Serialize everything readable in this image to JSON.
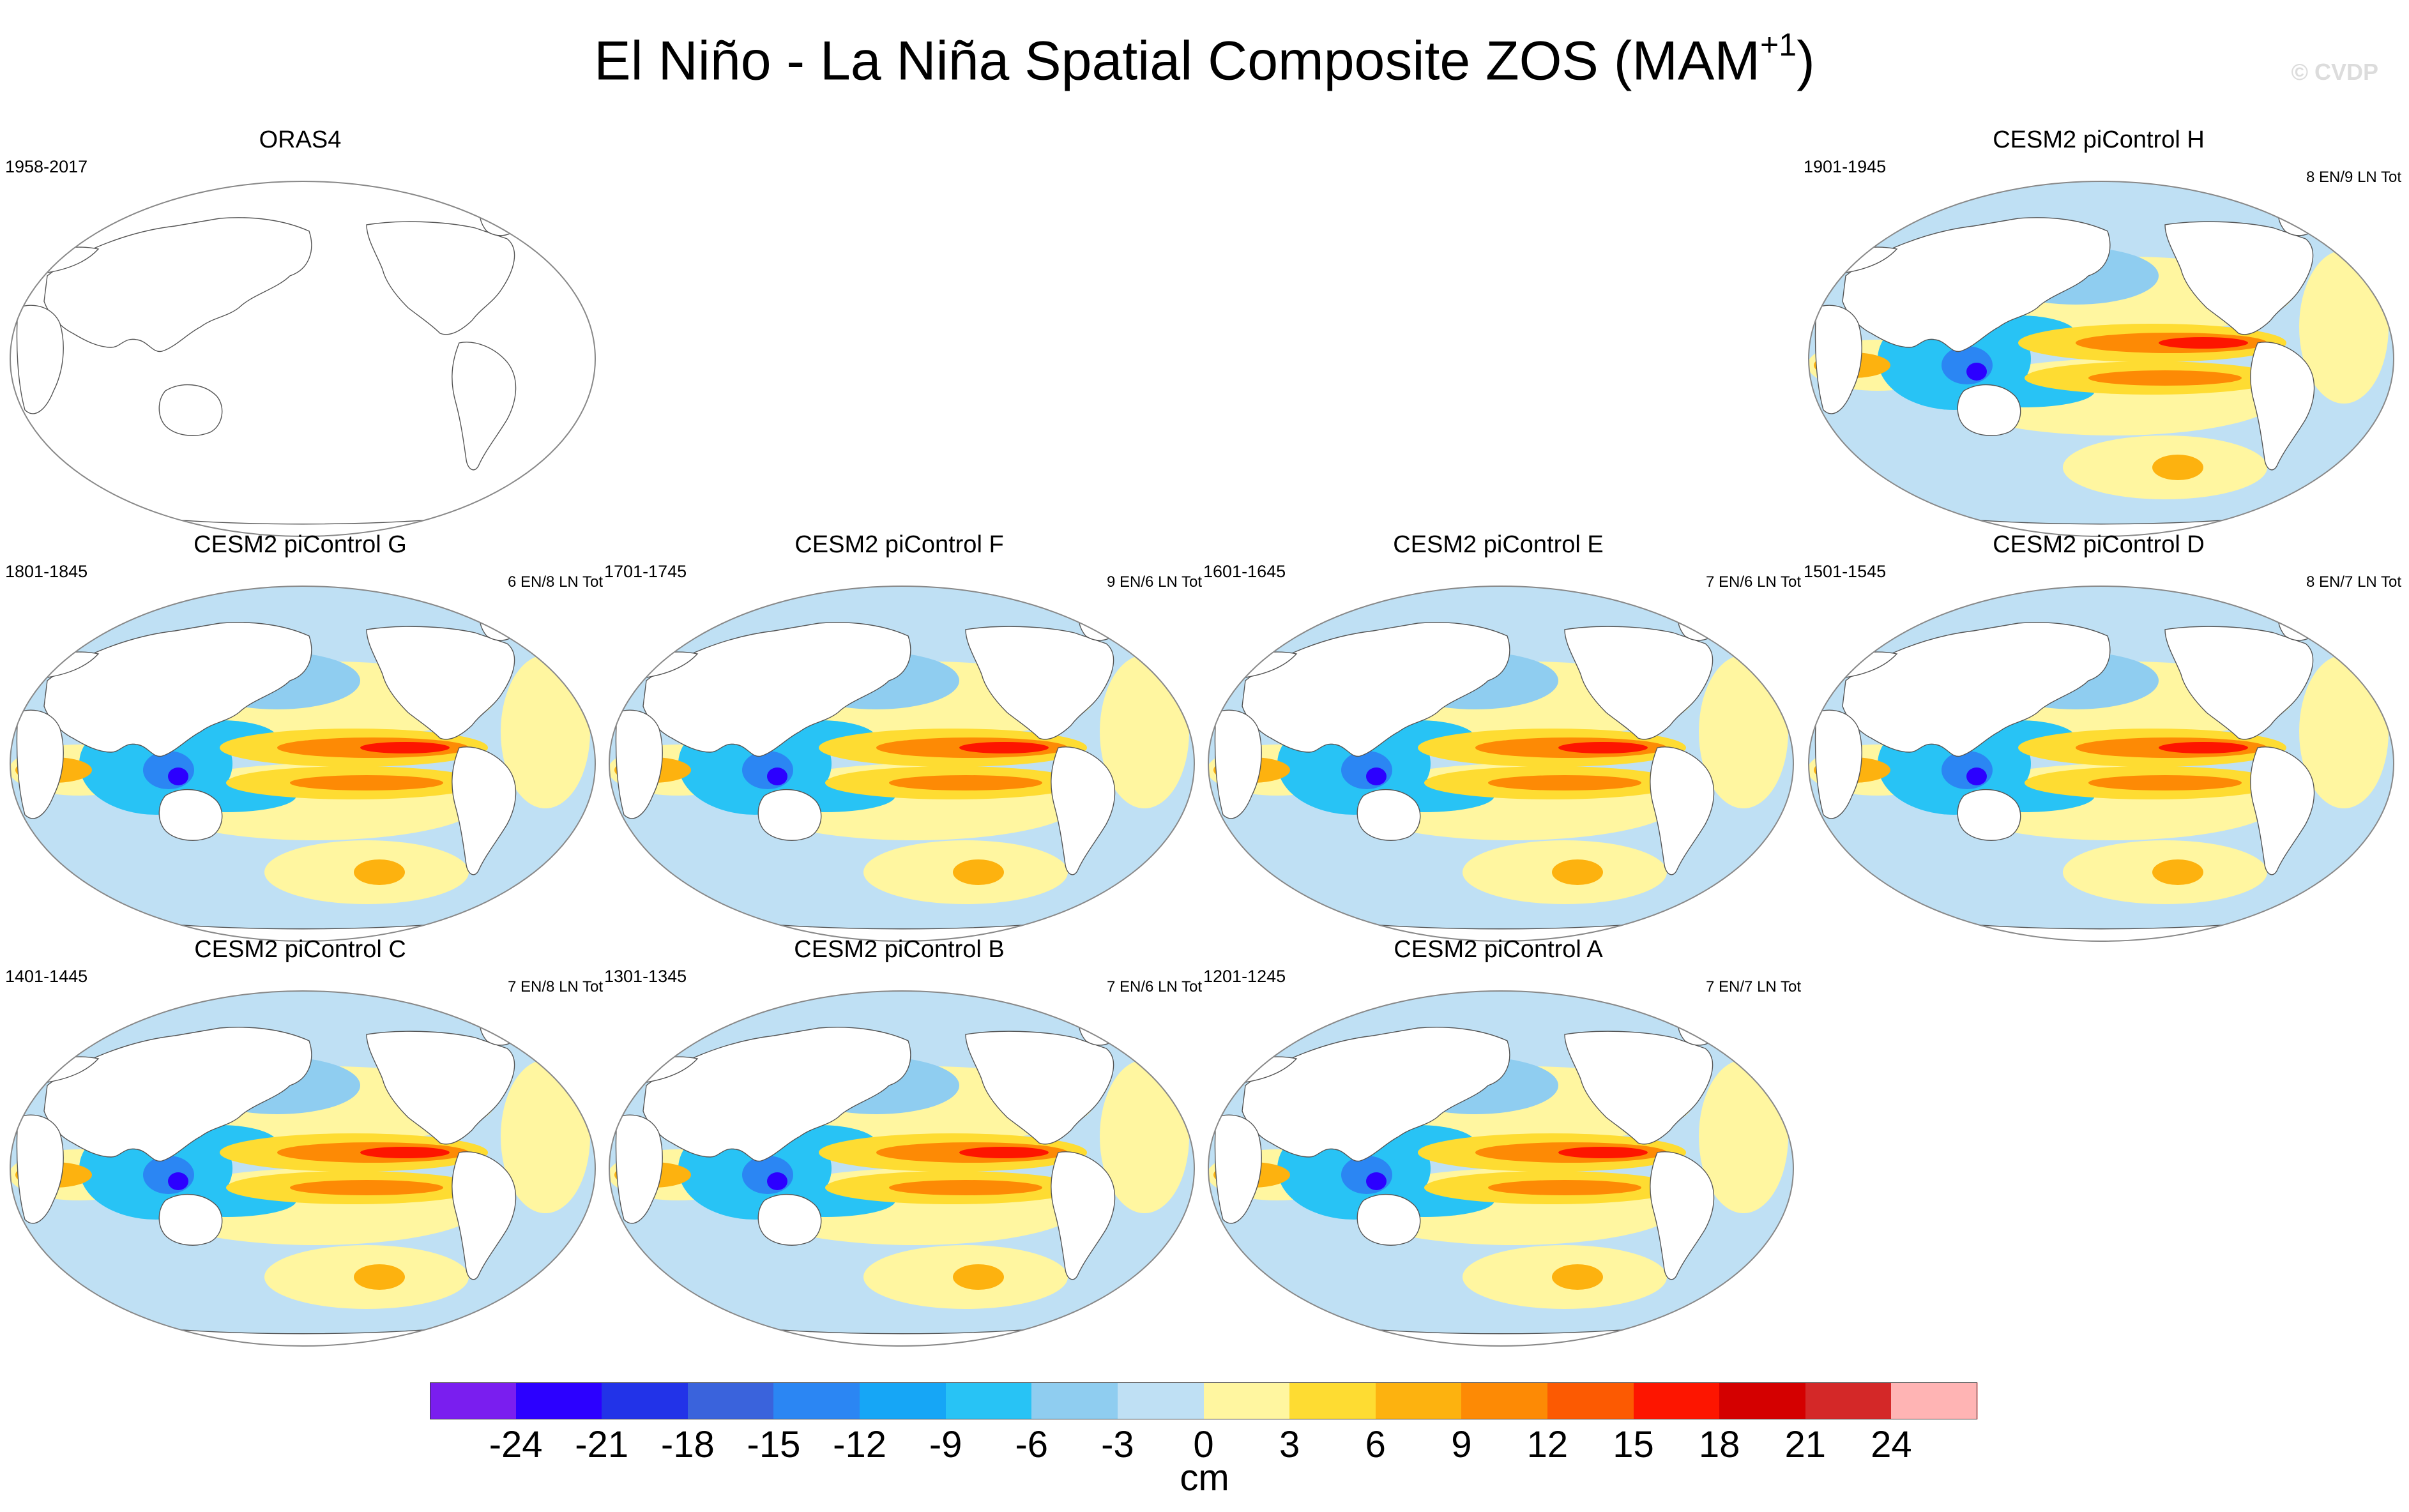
{
  "chart_data": {
    "type": "heatmap",
    "title": "El Niño - La Niña Spatial Composite ZOS (MAM",
    "title_superscript": "+1",
    "title_close": ")",
    "watermark": "© CVDP",
    "colorbar": {
      "units": "cm",
      "tick_labels": [
        "-24",
        "-21",
        "-18",
        "-15",
        "-12",
        "-9",
        "-6",
        "-3",
        "0",
        "3",
        "6",
        "9",
        "12",
        "15",
        "18",
        "21",
        "24"
      ],
      "colors": [
        "#7a1eef",
        "#2c00ff",
        "#2233e8",
        "#3a63dc",
        "#2b86f3",
        "#16a6f6",
        "#28c3f5",
        "#8fcdf0",
        "#bfe0f4",
        "#fff6a0",
        "#fedc32",
        "#fdb20f",
        "#fd8a05",
        "#fc5a02",
        "#fd1500",
        "#d40000",
        "#d42828",
        "#ffb4b4"
      ]
    },
    "panels": [
      {
        "title": "ORAS4",
        "years": "1958-2017",
        "count": "",
        "has_data": false
      },
      {
        "title": "CESM2 piControl H",
        "years": "1901-1945",
        "count": "8 EN/9 LN Tot",
        "has_data": true
      },
      {
        "title": "CESM2 piControl G",
        "years": "1801-1845",
        "count": "6 EN/8 LN Tot",
        "has_data": true
      },
      {
        "title": "CESM2 piControl F",
        "years": "1701-1745",
        "count": "9 EN/6 LN Tot",
        "has_data": true
      },
      {
        "title": "CESM2 piControl E",
        "years": "1601-1645",
        "count": "7 EN/6 LN Tot",
        "has_data": true
      },
      {
        "title": "CESM2 piControl D",
        "years": "1501-1545",
        "count": "8 EN/7 LN Tot",
        "has_data": true
      },
      {
        "title": "CESM2 piControl C",
        "years": "1401-1445",
        "count": "7 EN/8 LN Tot",
        "has_data": true
      },
      {
        "title": "CESM2 piControl B",
        "years": "1301-1345",
        "count": "7 EN/6 LN Tot",
        "has_data": true
      },
      {
        "title": "CESM2 piControl A",
        "years": "1201-1245",
        "count": "7 EN/7 LN Tot",
        "has_data": true
      }
    ]
  }
}
